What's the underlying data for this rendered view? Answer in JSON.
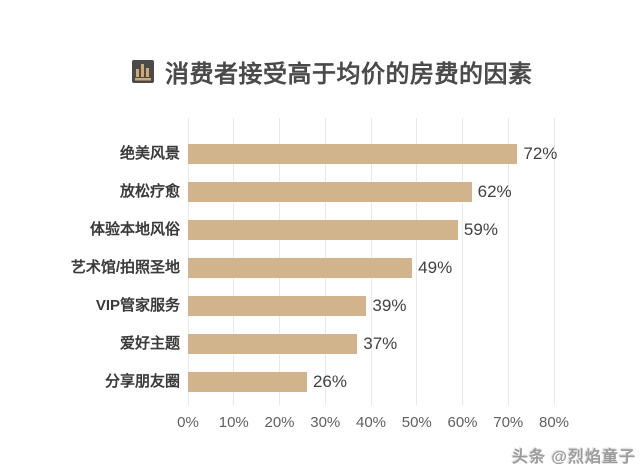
{
  "header": {
    "title": "消费者接受高于均价的房费的因素",
    "icon": "bar-chart-icon",
    "icon_bg_color": "#4a4a4a",
    "icon_glyph_color": "#cfa972"
  },
  "chart_data": {
    "type": "bar",
    "orientation": "horizontal",
    "title": "消费者接受高于均价的房费的因素",
    "categories": [
      "绝美风景",
      "放松疗愈",
      "体验本地风俗",
      "艺术馆/拍照圣地",
      "VIP管家服务",
      "爱好主题",
      "分享朋友圈"
    ],
    "values": [
      72,
      62,
      59,
      49,
      39,
      37,
      26
    ],
    "value_labels": [
      "72%",
      "62%",
      "59%",
      "49%",
      "39%",
      "37%",
      "26%"
    ],
    "x_ticks": [
      "0%",
      "10%",
      "20%",
      "30%",
      "40%",
      "50%",
      "60%",
      "70%",
      "80%"
    ],
    "xlim": [
      0,
      80
    ],
    "grid": true,
    "legend": "none",
    "bar_color": "#d2b48c",
    "gridline_color": "#ebe9e6"
  },
  "watermark": {
    "text": "头条 @烈焰童子"
  }
}
